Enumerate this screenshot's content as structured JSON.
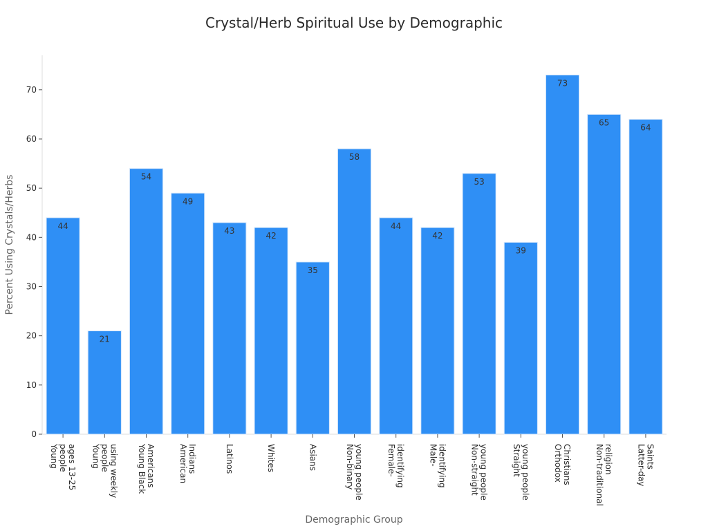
{
  "chart_data": {
    "type": "bar",
    "title": "Crystal/Herb Spiritual Use by Demographic",
    "xlabel": "Demographic Group",
    "ylabel": "Percent Using Crystals/Herbs",
    "ylim": [
      0,
      77
    ],
    "yticks": [
      0,
      10,
      20,
      30,
      40,
      50,
      60,
      70
    ],
    "grid": false,
    "bar_color": "#2f8ff5",
    "categories": [
      [
        "Young",
        "people",
        "ages 13-25"
      ],
      [
        "Young",
        "people",
        "using weekly"
      ],
      [
        "Young Black",
        "Americans"
      ],
      [
        "American",
        "Indians"
      ],
      [
        "Latinos"
      ],
      [
        "Whites"
      ],
      [
        "Asians"
      ],
      [
        "Non-binary",
        "young people"
      ],
      [
        "Female-",
        "identifying"
      ],
      [
        "Male-",
        "identifying"
      ],
      [
        "Non-straight",
        "young people"
      ],
      [
        "Straight",
        "young people"
      ],
      [
        "Orthodox",
        "Christians"
      ],
      [
        "Non-traditional",
        "religion"
      ],
      [
        "Latter-day",
        "Saints"
      ]
    ],
    "values": [
      44,
      21,
      54,
      49,
      43,
      42,
      35,
      58,
      44,
      42,
      53,
      39,
      73,
      65,
      64
    ]
  }
}
